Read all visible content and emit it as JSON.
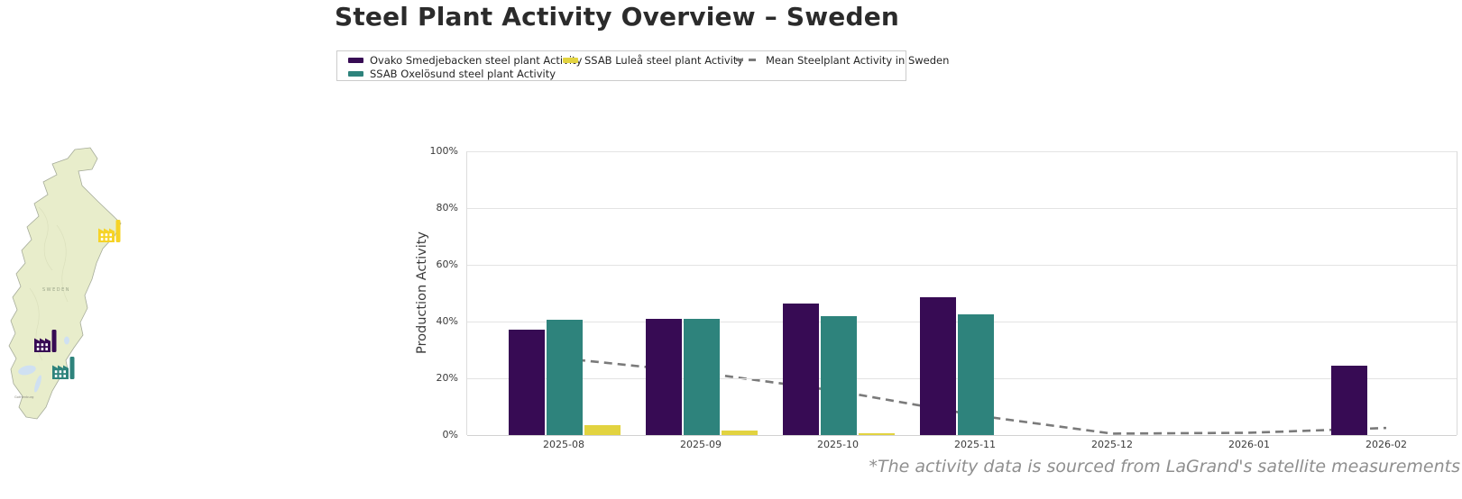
{
  "title": "Steel Plant Activity Overview – Sweden",
  "footnote": "*The activity data is sourced from LaGrand's satellite measurements",
  "legend": {
    "items": [
      {
        "label": "Ovako Smedjebacken steel plant Activity",
        "color": "#370b54"
      },
      {
        "label": "SSAB Oxelösund steel plant Activity",
        "color": "#2e837c"
      },
      {
        "label": "SSAB Luleå steel plant Activity",
        "color": "#e2d340"
      },
      {
        "label": "Mean Steelplant Activity in Sweden",
        "color": "#7a7a7a"
      }
    ]
  },
  "map": {
    "country_label": "SWEDEN",
    "city_label": "Gothenburg",
    "land_color": "#e8edcb",
    "lake_color": "#cfe0f2",
    "markers": [
      {
        "plant": "SSAB Luleå steel plant",
        "color": "#f6d327"
      },
      {
        "plant": "Ovako Smedjebacken steel plant",
        "color": "#370b54"
      },
      {
        "plant": "SSAB Oxelösund steel plant",
        "color": "#2e837c"
      }
    ]
  },
  "chart_data": {
    "type": "bar",
    "title": "Steel Plant Activity Overview – Sweden",
    "xlabel": "",
    "ylabel": "Production Activity",
    "ylim": [
      0,
      100
    ],
    "grid": true,
    "legend_position": "top",
    "yticks": [
      "0%",
      "20%",
      "40%",
      "60%",
      "80%",
      "100%"
    ],
    "ytick_values": [
      0,
      20,
      40,
      60,
      80,
      100
    ],
    "categories": [
      "2025-08",
      "2025-09",
      "2025-10",
      "2025-11",
      "2025-12",
      "2026-01",
      "2026-02"
    ],
    "series": [
      {
        "name": "Ovako Smedjebacken steel plant Activity",
        "color": "#370b54",
        "values": [
          37,
          41,
          46.5,
          48.5,
          0,
          0,
          24.5
        ]
      },
      {
        "name": "SSAB Oxelösund steel plant Activity",
        "color": "#2e837c",
        "values": [
          40.5,
          41,
          42,
          42.5,
          0,
          0,
          0
        ]
      },
      {
        "name": "SSAB Luleå steel plant Activity",
        "color": "#e2d340",
        "values": [
          3.5,
          1.5,
          0.6,
          0,
          0,
          0,
          0
        ]
      }
    ],
    "line_series": {
      "name": "Mean Steelplant Activity in Sweden",
      "color": "#7a7a7a",
      "style": "dashed",
      "values": [
        27,
        22,
        15.5,
        7,
        0.5,
        0.8,
        2.5
      ]
    }
  }
}
